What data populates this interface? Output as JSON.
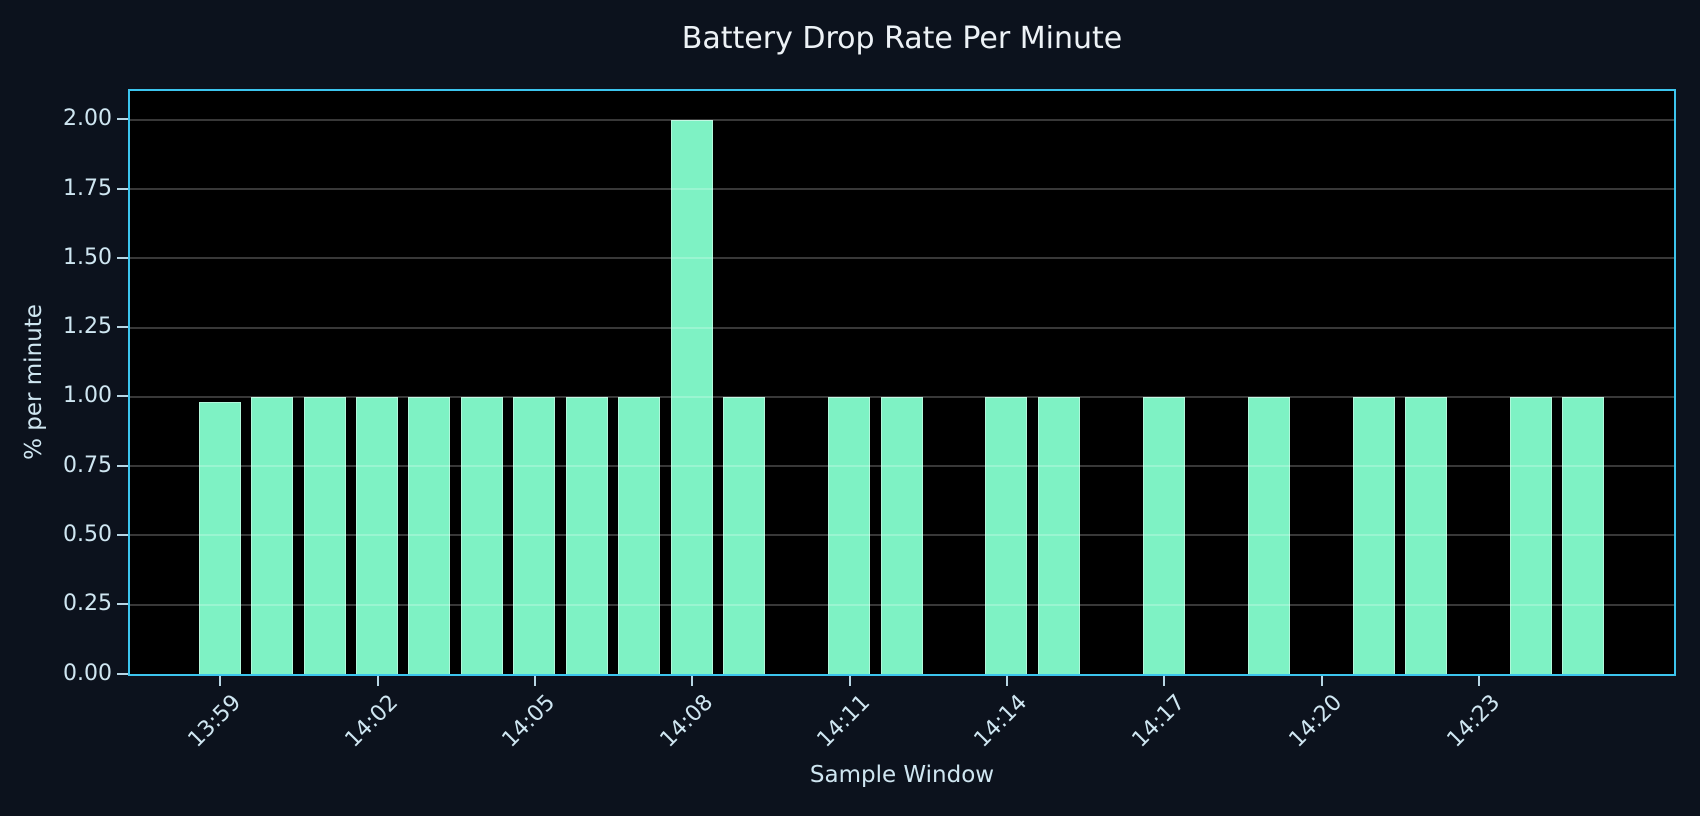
{
  "colors": {
    "figure_background": "#0c121d",
    "plot_background": "#000000",
    "axes_spine": "#3cc5ee",
    "bar_fill": "#7ef2c4",
    "bar_edge": "rgba(255,255,255,0.40)",
    "gridline": "rgba(255,255,255,0.22)",
    "tick_mark": "#b8d6e4",
    "tick_text": "#cfe6f1",
    "title_text": "#edf2f6"
  },
  "chart_data": {
    "type": "bar",
    "title": "Battery Drop Rate Per Minute",
    "xlabel": "Sample Window",
    "ylabel": "% per minute",
    "x": [
      "13:59",
      "14:00",
      "14:01",
      "14:02",
      "14:03",
      "14:04",
      "14:05",
      "14:06",
      "14:07",
      "14:08",
      "14:09",
      "14:10",
      "14:11",
      "14:12",
      "14:13",
      "14:14",
      "14:15",
      "14:16",
      "14:17",
      "14:18",
      "14:19",
      "14:20",
      "14:21",
      "14:22",
      "14:23",
      "14:24",
      "14:25"
    ],
    "values": [
      0.98,
      1.0,
      1.0,
      1.0,
      1.0,
      1.0,
      1.0,
      1.0,
      1.0,
      2.0,
      1.0,
      0,
      1.0,
      1.0,
      0,
      1.0,
      1.0,
      0,
      1.0,
      0,
      1.0,
      0,
      1.0,
      1.0,
      0,
      1.0,
      1.0
    ],
    "yticks": [
      "0.00",
      "0.25",
      "0.50",
      "0.75",
      "1.00",
      "1.25",
      "1.50",
      "1.75",
      "2.00"
    ],
    "xticks": [
      "13:59",
      "14:02",
      "14:05",
      "14:08",
      "14:11",
      "14:14",
      "14:17",
      "14:20",
      "14:23"
    ],
    "ylim": [
      0,
      2.1
    ],
    "grid": "horizontal, drawn above bars",
    "legend": "none",
    "bar_width_fraction": 0.8
  }
}
